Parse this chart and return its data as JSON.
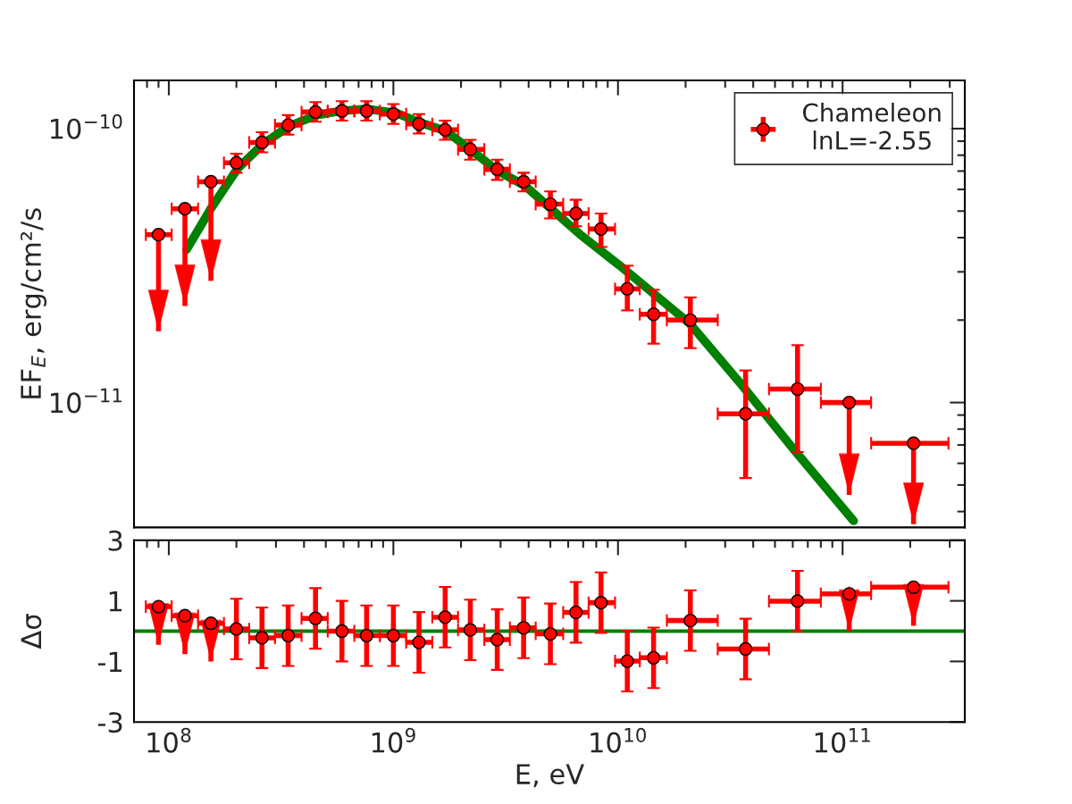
{
  "chart_data": [
    {
      "type": "scatter",
      "log": "xy",
      "ylabel": "EF$_{E}$, erg/cm²/s",
      "legend": "top right",
      "tick_labels": "y",
      "xlim": [
        70000000.0,
        350000000000.0
      ],
      "ylim": [
        3.5e-12,
        1.5e-10
      ],
      "xticks": [
        {
          "value": 100000000.0,
          "label": null
        },
        {
          "value": 1000000000.0,
          "label": null
        },
        {
          "value": 10000000000.0,
          "label": null
        },
        {
          "value": 100000000000.0,
          "label": null
        }
      ],
      "yticks": [
        {
          "value": 1e-11,
          "label": "10$^{−11}$"
        },
        {
          "value": 1e-10,
          "label": "10$^{−10}$"
        }
      ],
      "series": [
        {
          "name": "Chameleon\nlnL=-2.55",
          "marker": "circle",
          "color": "#ff0000",
          "x": [
            90000000.0,
            118000000.0,
            154000000.0,
            200000000.0,
            260000000.0,
            340000000.0,
            450000000.0,
            590000000.0,
            760000000.0,
            1000000000.0,
            1300000000.0,
            1700000000.0,
            2200000000.0,
            2900000000.0,
            3800000000.0,
            5000000000.0,
            6500000000.0,
            8400000000.0,
            11000000000.0,
            14400000000.0,
            21000000000.0,
            37000000000.0,
            63000000000.0,
            107000000000.0,
            207000000000.0
          ],
          "values": [
            4.1e-11,
            5.1e-11,
            6.4e-11,
            7.5e-11,
            8.9e-11,
            1.03e-10,
            1.15e-10,
            1.16e-10,
            1.16e-10,
            1.13e-10,
            1.04e-10,
            9.9e-11,
            8.4e-11,
            7.1e-11,
            6.4e-11,
            5.3e-11,
            4.9e-11,
            4.3e-11,
            2.6e-11,
            2.1e-11,
            2e-11,
            9.1e-12,
            1.12e-11,
            1e-11,
            7.1e-12
          ],
          "errors": [
            [
              1.82e-11,
              4.1e-11
            ],
            [
              2.25e-11,
              5.1e-11
            ],
            [
              2.78e-11,
              6.4e-11
            ],
            [
              6.9e-11,
              8.1e-11
            ],
            [
              8.2e-11,
              9.7e-11
            ],
            [
              9.5e-11,
              1.12e-10
            ],
            [
              1.06e-10,
              1.25e-10
            ],
            [
              1.07e-10,
              1.26e-10
            ],
            [
              1.07e-10,
              1.26e-10
            ],
            [
              1.04e-10,
              1.23e-10
            ],
            [
              9.6e-11,
              1.13e-10
            ],
            [
              9.1e-11,
              1.07e-10
            ],
            [
              7.7e-11,
              9.1e-11
            ],
            [
              6.5e-11,
              7.7e-11
            ],
            [
              5.9e-11,
              6.9e-11
            ],
            [
              4.7e-11,
              5.9e-11
            ],
            [
              4.4e-11,
              5.5e-11
            ],
            [
              3.7e-11,
              4.9e-11
            ],
            [
              2.17e-11,
              3.16e-11
            ],
            [
              1.64e-11,
              2.58e-11
            ],
            [
              1.58e-11,
              2.42e-11
            ],
            [
              5.3e-12,
              1.31e-11
            ],
            [
              6.6e-12,
              1.62e-11
            ],
            [
              4.6e-12,
              1e-11
            ],
            [
              3.6e-12,
              7.1e-12
            ]
          ],
          "xerrors": [
            [
              79000000.0,
              103000000.0
            ],
            [
              103000000.0,
              135000000.0
            ],
            [
              135000000.0,
              176000000.0
            ],
            [
              176000000.0,
              228000000.0
            ],
            [
              228000000.0,
              297000000.0
            ],
            [
              297000000.0,
              390000000.0
            ],
            [
              390000000.0,
              510000000.0
            ],
            [
              510000000.0,
              670000000.0
            ],
            [
              670000000.0,
              870000000.0
            ],
            [
              870000000.0,
              1140000000.0
            ],
            [
              1140000000.0,
              1490000000.0
            ],
            [
              1490000000.0,
              1940000000.0
            ],
            [
              1940000000.0,
              2540000000.0
            ],
            [
              2540000000.0,
              3300000000.0
            ],
            [
              3300000000.0,
              4300000000.0
            ],
            [
              4300000000.0,
              5700000000.0
            ],
            [
              5700000000.0,
              7400000000.0
            ],
            [
              7400000000.0,
              9700000000.0
            ],
            [
              9700000000.0,
              12500000000.0
            ],
            [
              12500000000.0,
              16500000000.0
            ],
            [
              16500000000.0,
              27800000000.0
            ],
            [
              27800000000.0,
              47000000000.0
            ],
            [
              47000000000.0,
              80000000000.0
            ],
            [
              80000000000.0,
              134000000000.0
            ],
            [
              134000000000.0,
              296000000000.0
            ]
          ]
        },
        {
          "type": "line",
          "color": "#008000",
          "line_style": "solid",
          "x": [
            120000000.0,
            155000000.0,
            202000000.0,
            263000000.0,
            343000000.0,
            454000000.0,
            581000000.0,
            763000000.0,
            1030000000.0,
            1320000000.0,
            1710000000.0,
            2240000000.0,
            2920000000.0,
            3840000000.0,
            6800000000.0,
            10100000000.0,
            20900000000.0,
            35200000000.0,
            61000000000.0,
            112000000000.0
          ],
          "values": [
            3.62e-11,
            5.15e-11,
            7.13e-11,
            8.8e-11,
            1.02e-10,
            1.12e-10,
            1.16e-10,
            1.18e-10,
            1.14e-10,
            1.05e-10,
            9.8e-11,
            8.3e-11,
            7e-11,
            6.2e-11,
            4.1e-11,
            3.18e-11,
            1.94e-11,
            1.17e-11,
            6.7e-12,
            3.7e-12
          ]
        }
      ]
    },
    {
      "type": "scatter",
      "log": "x",
      "xlabel": "E, eV",
      "ylabel": "Δσ",
      "xlim": [
        70000000.0,
        350000000000.0
      ],
      "ylim": [
        -3,
        3
      ],
      "xticks": [
        {
          "value": 100000000.0,
          "label": "10$^{8}$"
        },
        {
          "value": 1000000000.0,
          "label": "10$^{9}$"
        },
        {
          "value": 10000000000.0,
          "label": "10$^{10}$"
        },
        {
          "value": 100000000000.0,
          "label": "10$^{11}$"
        }
      ],
      "yticks": [
        -3,
        -1,
        1,
        3
      ],
      "ref_lines": [
        {
          "axis": "y",
          "value": 0,
          "color": "#008000"
        }
      ],
      "series": [
        {
          "marker": "circle",
          "color": "#ff0000",
          "x": [
            90000000.0,
            118000000.0,
            154000000.0,
            200000000.0,
            260000000.0,
            340000000.0,
            450000000.0,
            590000000.0,
            760000000.0,
            1000000000.0,
            1300000000.0,
            1700000000.0,
            2200000000.0,
            2900000000.0,
            3800000000.0,
            5000000000.0,
            6500000000.0,
            8400000000.0,
            11000000000.0,
            14400000000.0,
            21000000000.0,
            37000000000.0,
            63000000000.0,
            107000000000.0,
            207000000000.0
          ],
          "values": [
            0.81,
            0.51,
            0.26,
            0.07,
            -0.22,
            -0.15,
            0.42,
            0.0,
            -0.15,
            -0.15,
            -0.37,
            0.46,
            0.04,
            -0.28,
            0.11,
            -0.09,
            0.62,
            0.94,
            -0.99,
            -0.88,
            0.35,
            -0.59,
            0.99,
            1.23,
            1.45
          ],
          "errors": [
            [
              -0.45,
              0.81
            ],
            [
              -0.76,
              0.51
            ],
            [
              -1.0,
              0.26
            ],
            1,
            1,
            1,
            1,
            1,
            1,
            1,
            1,
            1,
            1,
            1,
            1,
            1,
            1,
            1,
            1,
            1,
            1,
            1,
            1,
            [
              0.0,
              1.23
            ],
            [
              0.18,
              1.45
            ]
          ],
          "xerrors": [
            [
              79000000.0,
              103000000.0
            ],
            [
              103000000.0,
              135000000.0
            ],
            [
              135000000.0,
              176000000.0
            ],
            [
              176000000.0,
              228000000.0
            ],
            [
              228000000.0,
              297000000.0
            ],
            [
              297000000.0,
              390000000.0
            ],
            [
              390000000.0,
              510000000.0
            ],
            [
              510000000.0,
              670000000.0
            ],
            [
              670000000.0,
              870000000.0
            ],
            [
              870000000.0,
              1140000000.0
            ],
            [
              1140000000.0,
              1490000000.0
            ],
            [
              1490000000.0,
              1940000000.0
            ],
            [
              1940000000.0,
              2540000000.0
            ],
            [
              2540000000.0,
              3300000000.0
            ],
            [
              3300000000.0,
              4300000000.0
            ],
            [
              4300000000.0,
              5700000000.0
            ],
            [
              5700000000.0,
              7400000000.0
            ],
            [
              7400000000.0,
              9700000000.0
            ],
            [
              9700000000.0,
              12500000000.0
            ],
            [
              12500000000.0,
              16500000000.0
            ],
            [
              16500000000.0,
              27800000000.0
            ],
            [
              27800000000.0,
              47000000000.0
            ],
            [
              47000000000.0,
              80000000000.0
            ],
            [
              80000000000.0,
              134000000000.0
            ],
            [
              134000000000.0,
              296000000000.0
            ]
          ]
        }
      ]
    }
  ]
}
